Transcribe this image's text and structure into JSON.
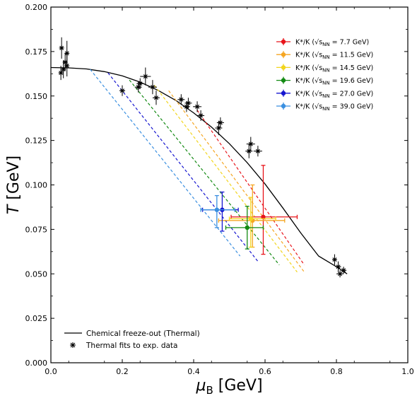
{
  "chart_data": {
    "type": "scatter",
    "xlabel_sym": "μ",
    "xlabel_sub": "B",
    "xlabel_unit": " [GeV]",
    "ylabel_sym": "T",
    "ylabel_unit": " [GeV]",
    "xlim": [
      0.0,
      1.0
    ],
    "ylim": [
      0.0,
      0.2
    ],
    "xticks": [
      "0.0",
      "0.2",
      "0.4",
      "0.6",
      "0.8",
      "1.0"
    ],
    "yticks": [
      "0.000",
      "0.025",
      "0.050",
      "0.075",
      "0.100",
      "0.125",
      "0.150",
      "0.175",
      "0.200"
    ],
    "legend_position": "top-right",
    "legend_prefix": "K*/K (√s",
    "legend_sub": "NN",
    "series": [
      {
        "name": "K*/K (√sNN = 7.7 GeV)",
        "energy": "7.7 GeV",
        "color": "#e8141a",
        "x": 0.595,
        "y": 0.082,
        "xerr": [
          0.09,
          0.095
        ],
        "yerr": [
          0.021,
          0.029
        ],
        "line": [
          [
            0.41,
            0.142
          ],
          [
            0.71,
            0.055
          ]
        ]
      },
      {
        "name": "K*/K (√sNN = 11.5 GeV)",
        "energy": "11.5 GeV",
        "color": "#f5a623",
        "x": 0.565,
        "y": 0.08,
        "xerr": [
          0.095,
          0.09
        ],
        "yerr": [
          0.015,
          0.02
        ],
        "line": [
          [
            0.33,
            0.153
          ],
          [
            0.71,
            0.051
          ]
        ]
      },
      {
        "name": "K*/K (√sNN = 14.5 GeV)",
        "energy": "14.5 GeV",
        "color": "#f2d51e",
        "x": 0.56,
        "y": 0.081,
        "xerr": [
          0.06,
          0.07
        ],
        "yerr": [
          0.016,
          0.012
        ],
        "line": [
          [
            0.29,
            0.156
          ],
          [
            0.69,
            0.051
          ]
        ]
      },
      {
        "name": "K*/K (√sNN = 19.6 GeV)",
        "energy": "19.6 GeV",
        "color": "#138a13",
        "x": 0.55,
        "y": 0.076,
        "xerr": [
          0.06,
          0.045
        ],
        "yerr": [
          0.012,
          0.012
        ],
        "line": [
          [
            0.22,
            0.159
          ],
          [
            0.64,
            0.055
          ]
        ]
      },
      {
        "name": "K*/K (√sNN = 27.0 GeV)",
        "energy": "27.0 GeV",
        "color": "#1616d0",
        "x": 0.48,
        "y": 0.086,
        "xerr": [
          0.055,
          0.045
        ],
        "yerr": [
          0.012,
          0.01
        ],
        "line": [
          [
            0.16,
            0.163
          ],
          [
            0.58,
            0.057
          ]
        ]
      },
      {
        "name": "K*/K (√sNN = 39.0 GeV)",
        "energy": "39.0 GeV",
        "color": "#3a8fe0",
        "x": 0.465,
        "y": 0.086,
        "xerr": [
          0.045,
          0.05
        ],
        "yerr": [
          0.01,
          0.008
        ],
        "line": [
          [
            0.11,
            0.165
          ],
          [
            0.53,
            0.06
          ]
        ]
      }
    ],
    "freezeout_curve": {
      "name": "Chemical freeze-out (Thermal)",
      "points": [
        [
          0.0,
          0.166
        ],
        [
          0.05,
          0.1658
        ],
        [
          0.1,
          0.1652
        ],
        [
          0.15,
          0.1637
        ],
        [
          0.2,
          0.1613
        ],
        [
          0.25,
          0.1578
        ],
        [
          0.3,
          0.1532
        ],
        [
          0.35,
          0.1475
        ],
        [
          0.4,
          0.1405
        ],
        [
          0.45,
          0.1325
        ],
        [
          0.5,
          0.1232
        ],
        [
          0.55,
          0.1125
        ],
        [
          0.6,
          0.1005
        ],
        [
          0.65,
          0.087
        ],
        [
          0.7,
          0.073
        ],
        [
          0.75,
          0.06
        ],
        [
          0.8,
          0.054
        ],
        [
          0.83,
          0.05
        ]
      ]
    },
    "thermal_fits": {
      "name": "Thermal fits to exp. data",
      "points": [
        {
          "x": 0.028,
          "y": 0.163,
          "xerr": 0.004,
          "yerr": 0.004
        },
        {
          "x": 0.03,
          "y": 0.177,
          "xerr": 0.004,
          "yerr": 0.006
        },
        {
          "x": 0.035,
          "y": 0.165,
          "xerr": 0.004,
          "yerr": 0.005
        },
        {
          "x": 0.04,
          "y": 0.169,
          "xerr": 0.005,
          "yerr": 0.005
        },
        {
          "x": 0.045,
          "y": 0.174,
          "xerr": 0.005,
          "yerr": 0.007
        },
        {
          "x": 0.045,
          "y": 0.167,
          "xerr": 0.005,
          "yerr": 0.006
        },
        {
          "x": 0.2,
          "y": 0.153,
          "xerr": 0.008,
          "yerr": 0.003
        },
        {
          "x": 0.245,
          "y": 0.155,
          "xerr": 0.01,
          "yerr": 0.003
        },
        {
          "x": 0.25,
          "y": 0.157,
          "xerr": 0.01,
          "yerr": 0.003
        },
        {
          "x": 0.265,
          "y": 0.161,
          "xerr": 0.015,
          "yerr": 0.005
        },
        {
          "x": 0.285,
          "y": 0.155,
          "xerr": 0.012,
          "yerr": 0.004
        },
        {
          "x": 0.295,
          "y": 0.149,
          "xerr": 0.01,
          "yerr": 0.004
        },
        {
          "x": 0.365,
          "y": 0.148,
          "xerr": 0.01,
          "yerr": 0.003
        },
        {
          "x": 0.38,
          "y": 0.144,
          "xerr": 0.01,
          "yerr": 0.003
        },
        {
          "x": 0.385,
          "y": 0.146,
          "xerr": 0.01,
          "yerr": 0.003
        },
        {
          "x": 0.41,
          "y": 0.144,
          "xerr": 0.012,
          "yerr": 0.003
        },
        {
          "x": 0.42,
          "y": 0.139,
          "xerr": 0.01,
          "yerr": 0.003
        },
        {
          "x": 0.47,
          "y": 0.132,
          "xerr": 0.01,
          "yerr": 0.004
        },
        {
          "x": 0.475,
          "y": 0.135,
          "xerr": 0.01,
          "yerr": 0.003
        },
        {
          "x": 0.555,
          "y": 0.119,
          "xerr": 0.01,
          "yerr": 0.004
        },
        {
          "x": 0.56,
          "y": 0.123,
          "xerr": 0.012,
          "yerr": 0.004
        },
        {
          "x": 0.58,
          "y": 0.119,
          "xerr": 0.012,
          "yerr": 0.003
        },
        {
          "x": 0.795,
          "y": 0.058,
          "xerr": 0.006,
          "yerr": 0.003
        },
        {
          "x": 0.805,
          "y": 0.054,
          "xerr": 0.008,
          "yerr": 0.003
        },
        {
          "x": 0.81,
          "y": 0.05,
          "xerr": 0.01,
          "yerr": 0.002
        },
        {
          "x": 0.82,
          "y": 0.052,
          "xerr": 0.008,
          "yerr": 0.002
        }
      ]
    }
  }
}
